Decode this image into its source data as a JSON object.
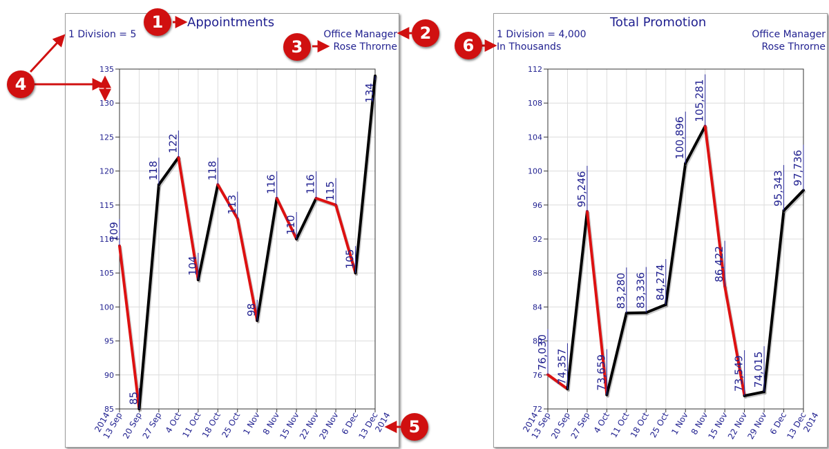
{
  "chart_data": [
    {
      "type": "line",
      "title": "Appointments",
      "division_note": "1 Division = 5",
      "units_note": "",
      "manager_title": "Office Manager",
      "manager_name": "Rose Throrne",
      "year_start": "2014",
      "year_end": "2014",
      "categories": [
        "13 Sep",
        "20 Sep",
        "27 Sep",
        "4 Oct",
        "11 Oct",
        "18 Oct",
        "25 Oct",
        "1 Nov",
        "8 Nov",
        "15 Nov",
        "22 Nov",
        "29 Nov",
        "6 Dec",
        "13 Dec"
      ],
      "values": [
        109,
        85,
        118,
        122,
        104,
        118,
        113,
        98,
        116,
        110,
        116,
        115,
        105,
        134
      ],
      "labels": [
        "109",
        "85",
        "118",
        "122",
        "104",
        "118",
        "113",
        "98",
        "116",
        "110",
        "116",
        "115",
        "105",
        "134"
      ],
      "ylim": [
        85,
        135
      ],
      "yticks": [
        85,
        90,
        95,
        100,
        105,
        110,
        115,
        120,
        125,
        130,
        135
      ],
      "grid": true,
      "colors": {
        "up": "#000000",
        "down": "#dd1111",
        "text": "#1f1f8f"
      }
    },
    {
      "type": "line",
      "title": "Total Promotion",
      "division_note": "1 Division = 4,000",
      "units_note": "In Thousands",
      "manager_title": "Office Manager",
      "manager_name": "Rose Throrne",
      "year_start": "2014",
      "year_end": "2014",
      "categories": [
        "13 Sep",
        "20 Sep",
        "27 Sep",
        "4 Oct",
        "11 Oct",
        "18 Oct",
        "25 Oct",
        "1 Nov",
        "8 Nov",
        "15 Nov",
        "22 Nov",
        "29 Nov",
        "6 Dec",
        "13 Dec"
      ],
      "values": [
        76.03,
        74.357,
        95.246,
        73.659,
        83.28,
        83.336,
        84.274,
        100.896,
        105.281,
        86.422,
        73.549,
        74.015,
        95.343,
        97.736
      ],
      "labels": [
        "76,030",
        "74,357",
        "95,246",
        "73,659",
        "83,280",
        "83,336",
        "84,274",
        "100,896",
        "105,281",
        "86,422",
        "73,549",
        "74,015",
        "95,343",
        "97,736"
      ],
      "ylim": [
        72,
        112
      ],
      "yticks": [
        72,
        76,
        80,
        84,
        88,
        92,
        96,
        100,
        104,
        108,
        112
      ],
      "grid": true,
      "colors": {
        "up": "#000000",
        "down": "#dd1111",
        "text": "#1f1f8f"
      }
    }
  ],
  "callouts": [
    "1",
    "2",
    "3",
    "4",
    "5",
    "6"
  ],
  "colors": {
    "callout": "#d01010"
  }
}
